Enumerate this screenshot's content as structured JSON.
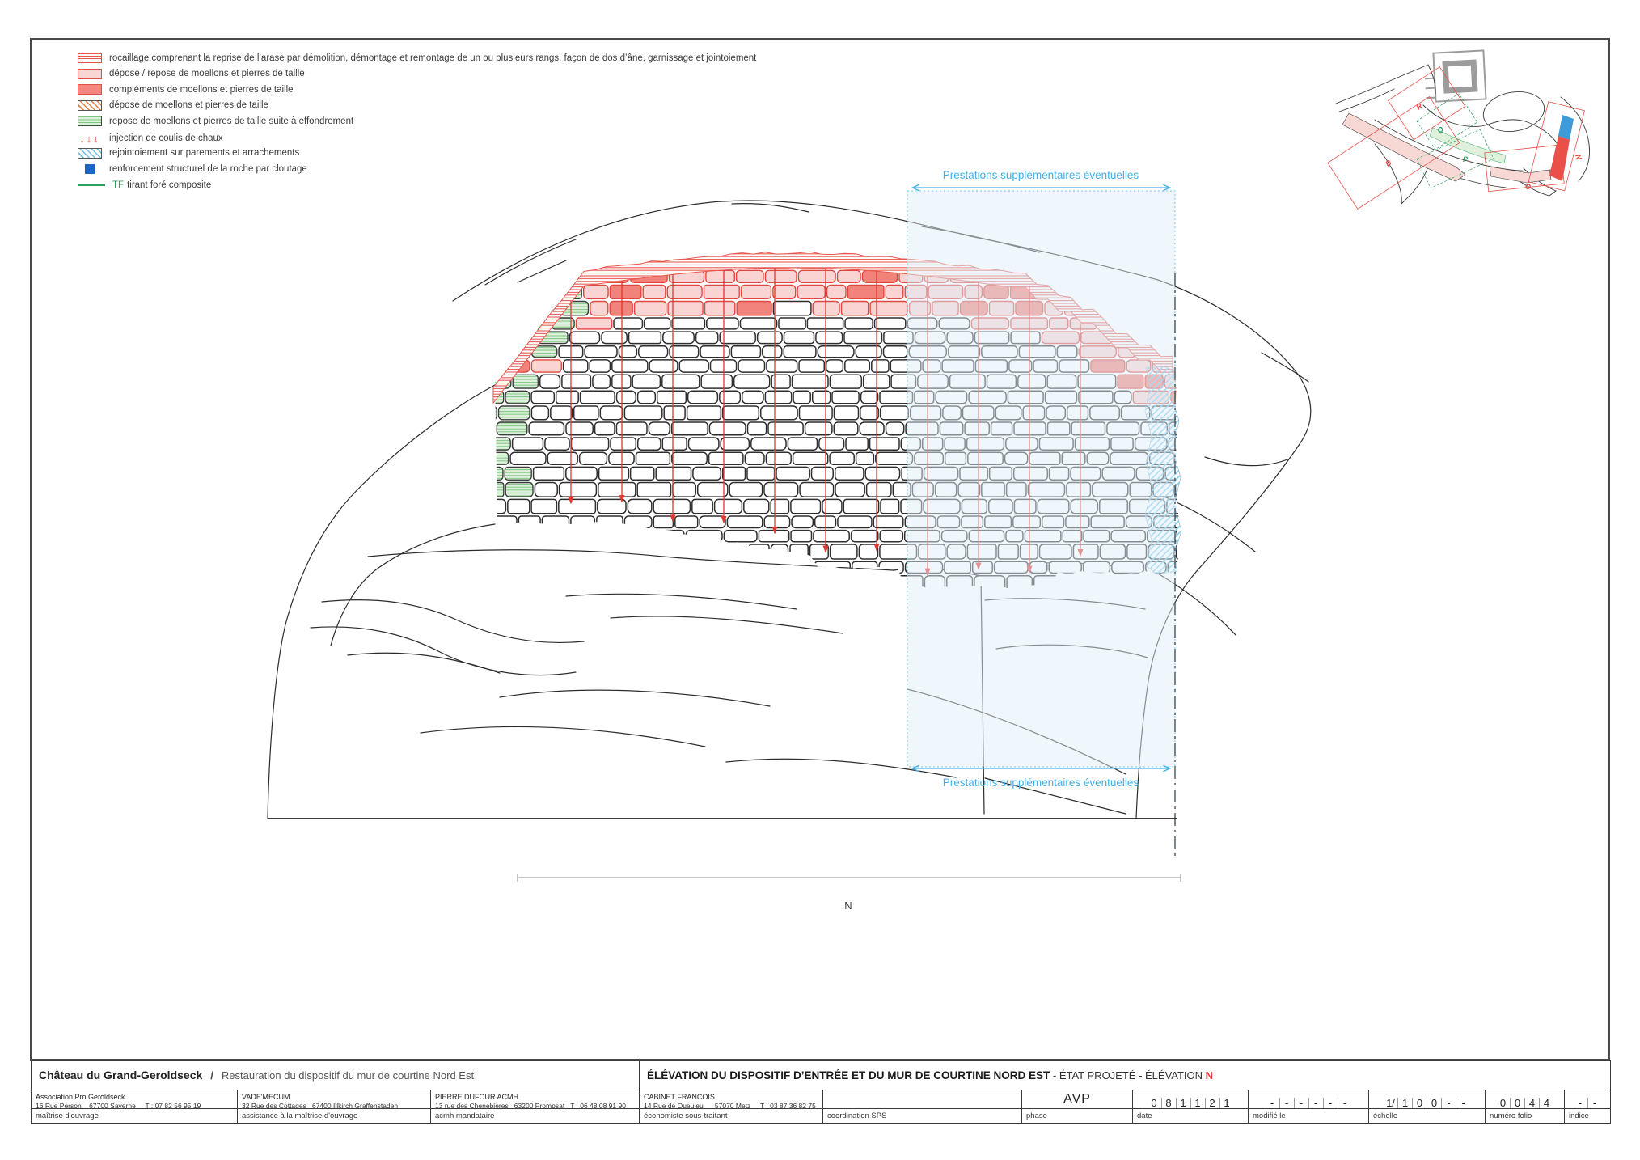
{
  "legend": {
    "items": [
      {
        "swatch": "rocaillage",
        "label": "rocaillage comprenant la reprise de l’arase par démolition, démontage et remontage de un ou plusieurs rangs, façon de dos d’âne, garnissage et jointoiement"
      },
      {
        "swatch": "pink",
        "label": "dépose / repose de moellons et pierres de taille"
      },
      {
        "swatch": "red",
        "label": "compléments de moellons et pierres de taille"
      },
      {
        "swatch": "hatch-orange",
        "label": "dépose de moellons et pierres de taille"
      },
      {
        "swatch": "green",
        "label": "repose de moellons et pierres de taille suite à effondrement"
      },
      {
        "swatch": "arrows",
        "label": "injection de coulis de chaux",
        "arrow_glyphs": "↓↓↓"
      },
      {
        "swatch": "hatch-blue",
        "label": "rejointoiement sur parements et arrachements"
      },
      {
        "swatch": "blue-square",
        "label": "renforcement structurel de la roche par cloutage"
      },
      {
        "swatch": "tf-line",
        "abbr": "TF",
        "label": "tirant foré composite"
      }
    ]
  },
  "annotations": {
    "prestations_top": "Prestations supplémentaires éventuelles",
    "prestations_bottom": "Prestations supplémentaires éventuelles",
    "axis_label": "N"
  },
  "site_map": {
    "labels": [
      "R",
      "B",
      "Q",
      "P",
      "O",
      "N"
    ]
  },
  "title_block": {
    "project_name": "Château du Grand-Geroldseck",
    "project_sep": "/",
    "project_subtitle": "Restauration du dispositif du mur de courtine Nord Est",
    "drawing_title_main": "ÉLÉVATION DU DISPOSITIF D’ENTRÉE ET DU MUR DE COURTINE NORD EST",
    "drawing_title_suffix": " - ÉTAT PROJETÉ - ÉLÉVATION ",
    "drawing_title_letter": "N",
    "stakeholders": [
      {
        "name": "Association Pro Geroldseck",
        "address": "16 Rue Person    67700 Saverne     T : 07 82 56 95 19",
        "role": "maîtrise d'ouvrage"
      },
      {
        "name": "VADE'MECUM",
        "address": "32 Rue des Cottages   67400 Illkirch Graffenstaden",
        "role": "assistance à la maîtrise d'ouvrage"
      },
      {
        "name": "PIERRE DUFOUR ACMH",
        "address": "13 rue des Chenebières   63200 Prompsat   T : 06 48 08 91 90",
        "role": "acmh mandataire"
      },
      {
        "name": "CABINET FRANCOIS",
        "address": "14 Rue de Queuleu      57070 Metz     T : 03 87 36 82 75",
        "role": "économiste sous-traitant"
      },
      {
        "name": "",
        "address": "",
        "role": "coordination SPS"
      }
    ],
    "phase": {
      "value": "AVP",
      "label": "phase"
    },
    "date": {
      "value": "081121",
      "label": "date"
    },
    "modified": {
      "value": "------",
      "label": "modifié le"
    },
    "scale": {
      "value": [
        "1/",
        "1",
        "0",
        "0",
        "-",
        "-"
      ],
      "label": "échelle"
    },
    "folio": {
      "value": "0044",
      "label": "numéro folio"
    },
    "index": {
      "value": "--",
      "label": "indice"
    }
  },
  "colors": {
    "red": "#e0473e",
    "arrow_red": "#e0372e",
    "pink_fill": "#f9d4d2",
    "red_fill": "#f2837b",
    "green_stripe": "#7cc87c",
    "green_fill": "#dff0df",
    "blue_hatch": "#74c4ec",
    "prestations_blue": "#45b0e8",
    "structural_blue": "#1a66c2",
    "tf_green": "#2aa05a",
    "stone_stroke": "#2e2e2e"
  }
}
